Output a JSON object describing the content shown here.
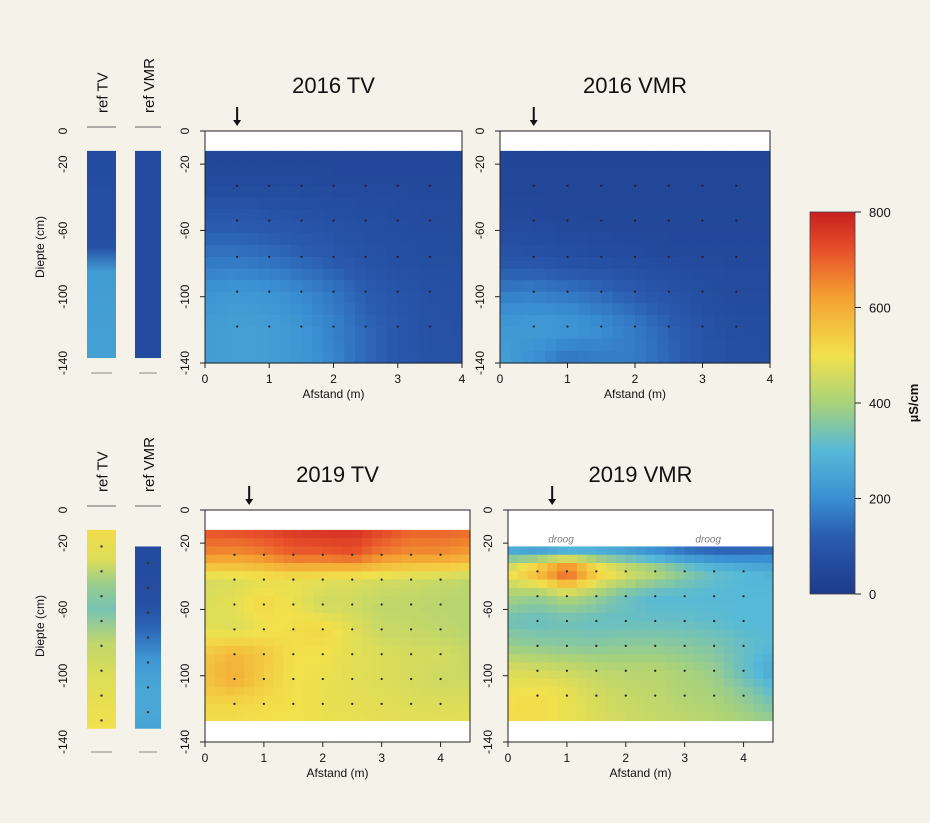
{
  "chart_data": {
    "type": "heatmap",
    "colorbar": {
      "label": "µS/cm",
      "min": 0,
      "max": 800,
      "ticks": [
        "800",
        "600",
        "400",
        "200",
        "0"
      ],
      "tick_values": [
        800,
        600,
        400,
        200,
        0
      ],
      "stops": [
        {
          "v": 0,
          "c": "#1d3a8a"
        },
        {
          "v": 120,
          "c": "#2a5bb0"
        },
        {
          "v": 200,
          "c": "#3a8fd2"
        },
        {
          "v": 300,
          "c": "#56b9d8"
        },
        {
          "v": 400,
          "c": "#a9d27a"
        },
        {
          "v": 500,
          "c": "#f2e14b"
        },
        {
          "v": 620,
          "c": "#f4a232"
        },
        {
          "v": 720,
          "c": "#e8502a"
        },
        {
          "v": 800,
          "c": "#c81f1f"
        }
      ]
    },
    "rows": [
      {
        "ylabel": "Diepte (cm)",
        "ref_columns": [
          {
            "label": "ref TV",
            "top_cm": -12,
            "bottom_cm": -137,
            "profile": [
              [
                -12,
                60
              ],
              [
                -70,
                80
              ],
              [
                -85,
                230
              ],
              [
                -137,
                240
              ]
            ]
          },
          {
            "label": "ref VMR",
            "top_cm": -12,
            "bottom_cm": -137,
            "profile": [
              [
                -12,
                60
              ],
              [
                -137,
                60
              ]
            ]
          }
        ],
        "ref_yticks": [
          "0",
          "-20",
          "-60",
          "-100",
          "-140"
        ],
        "ref_ytick_values": [
          0,
          -20,
          -60,
          -100,
          -140
        ],
        "panels": [
          {
            "title": "2016  TV",
            "xlabel": "Afstand (m)",
            "xlim": [
              0,
              4
            ],
            "ylim": [
              -140,
              0
            ],
            "xticks": [
              "0",
              "1",
              "2",
              "3",
              "4"
            ],
            "xtick_values": [
              0,
              1,
              2,
              3,
              4
            ],
            "yticks": [
              "0",
              "-20",
              "-60",
              "-100",
              "-140"
            ],
            "ytick_values": [
              0,
              -20,
              -60,
              -100,
              -140
            ],
            "arrow_x": 0.5,
            "data_top_cm": -12,
            "droog_labels": [],
            "grid_x": [
              0,
              0.5,
              1,
              1.5,
              2,
              2.5,
              3,
              3.5,
              4
            ],
            "grid_y": [
              -12,
              -33,
              -54,
              -76,
              -97,
              -118,
              -140
            ],
            "values": [
              [
                50,
                50,
                50,
                50,
                50,
                50,
                50,
                50,
                50
              ],
              [
                60,
                60,
                60,
                60,
                55,
                55,
                55,
                55,
                55
              ],
              [
                110,
                110,
                100,
                90,
                80,
                70,
                65,
                60,
                60
              ],
              [
                160,
                160,
                150,
                130,
                110,
                90,
                75,
                70,
                70
              ],
              [
                210,
                220,
                210,
                190,
                160,
                120,
                95,
                80,
                80
              ],
              [
                230,
                240,
                235,
                215,
                180,
                140,
                105,
                85,
                80
              ],
              [
                230,
                240,
                235,
                220,
                185,
                140,
                105,
                90,
                85
              ]
            ]
          },
          {
            "title": "2016  VMR",
            "xlabel": "Afstand (m)",
            "xlim": [
              0,
              4
            ],
            "ylim": [
              -140,
              0
            ],
            "xticks": [
              "0",
              "1",
              "2",
              "3",
              "4"
            ],
            "xtick_values": [
              0,
              1,
              2,
              3,
              4
            ],
            "yticks": [
              "0",
              "-20",
              "-60",
              "-100",
              "-140"
            ],
            "ytick_values": [
              0,
              -20,
              -60,
              -100,
              -140
            ],
            "arrow_x": 0.5,
            "data_top_cm": -12,
            "droog_labels": [],
            "grid_x": [
              0,
              0.5,
              1,
              1.5,
              2,
              2.5,
              3,
              3.5,
              4
            ],
            "grid_y": [
              -12,
              -33,
              -54,
              -76,
              -97,
              -118,
              -140
            ],
            "values": [
              [
                40,
                40,
                40,
                40,
                40,
                40,
                40,
                40,
                40
              ],
              [
                45,
                45,
                45,
                45,
                45,
                45,
                45,
                45,
                45
              ],
              [
                55,
                55,
                50,
                50,
                50,
                50,
                50,
                50,
                50
              ],
              [
                90,
                85,
                75,
                65,
                60,
                55,
                55,
                55,
                55
              ],
              [
                170,
                175,
                160,
                140,
                115,
                90,
                70,
                60,
                60
              ],
              [
                220,
                230,
                225,
                200,
                170,
                130,
                90,
                70,
                65
              ],
              [
                240,
                200,
                150,
                170,
                170,
                140,
                95,
                75,
                70
              ]
            ]
          }
        ]
      },
      {
        "ylabel": "Diepte (cm)",
        "ref_columns": [
          {
            "label": "ref TV",
            "top_cm": -12,
            "bottom_cm": -132,
            "profile": [
              [
                -12,
                510
              ],
              [
                -30,
                470
              ],
              [
                -45,
                380
              ],
              [
                -60,
                340
              ],
              [
                -80,
                430
              ],
              [
                -100,
                470
              ],
              [
                -132,
                500
              ]
            ]
          },
          {
            "label": "ref VMR",
            "top_cm": -22,
            "bottom_cm": -132,
            "profile": [
              [
                -22,
                60
              ],
              [
                -55,
                70
              ],
              [
                -70,
                130
              ],
              [
                -90,
                220
              ],
              [
                -110,
                260
              ],
              [
                -132,
                250
              ]
            ]
          }
        ],
        "ref_yticks": [
          "0",
          "-20",
          "-60",
          "-100",
          "-140"
        ],
        "ref_ytick_values": [
          0,
          -20,
          -60,
          -100,
          -140
        ],
        "panels": [
          {
            "title": "2019  TV",
            "xlabel": "Afstand (m)",
            "xlim": [
              0,
              4.5
            ],
            "ylim": [
              -140,
              0
            ],
            "xticks": [
              "0",
              "1",
              "2",
              "3",
              "4"
            ],
            "xtick_values": [
              0,
              1,
              2,
              3,
              4
            ],
            "yticks": [
              "0",
              "-20",
              "-60",
              "-100",
              "-140"
            ],
            "ytick_values": [
              0,
              -20,
              -60,
              -100,
              -140
            ],
            "arrow_x": 0.75,
            "data_top_cm": -12,
            "data_bottom_cm": -127,
            "droog_labels": [],
            "grid_x": [
              0,
              0.5,
              1,
              1.5,
              2,
              2.5,
              3,
              3.5,
              4,
              4.5
            ],
            "grid_y": [
              -12,
              -27,
              -42,
              -57,
              -72,
              -87,
              -102,
              -117,
              -127
            ],
            "values": [
              [
                720,
                730,
                740,
                760,
                770,
                770,
                740,
                700,
                700,
                690
              ],
              [
                650,
                640,
                660,
                700,
                700,
                720,
                660,
                640,
                640,
                620
              ],
              [
                460,
                470,
                480,
                490,
                480,
                470,
                460,
                450,
                440,
                430
              ],
              [
                470,
                480,
                520,
                490,
                450,
                450,
                430,
                430,
                420,
                420
              ],
              [
                480,
                470,
                490,
                510,
                520,
                480,
                440,
                440,
                430,
                420
              ],
              [
                550,
                580,
                550,
                500,
                500,
                480,
                470,
                460,
                460,
                440
              ],
              [
                560,
                600,
                540,
                500,
                490,
                480,
                470,
                460,
                450,
                450
              ],
              [
                520,
                520,
                510,
                500,
                490,
                480,
                480,
                470,
                470,
                470
              ],
              [
                510,
                510,
                500,
                500,
                490,
                490,
                480,
                480,
                480,
                480
              ]
            ]
          },
          {
            "title": "2019  VMR",
            "xlabel": "Afstand (m)",
            "xlim": [
              0,
              4.5
            ],
            "ylim": [
              -140,
              0
            ],
            "xticks": [
              "0",
              "1",
              "2",
              "3",
              "4"
            ],
            "xtick_values": [
              0,
              1,
              2,
              3,
              4
            ],
            "yticks": [
              "0",
              "-20",
              "-60",
              "-100",
              "-140"
            ],
            "ytick_values": [
              0,
              -20,
              -60,
              -100,
              -140
            ],
            "arrow_x": 0.75,
            "data_top_cm": -22,
            "data_bottom_cm": -127,
            "droog_labels": [
              {
                "text": "droog",
                "x": 0.9
              },
              {
                "text": "droog",
                "x": 3.4
              }
            ],
            "grid_x": [
              0,
              0.5,
              1,
              1.5,
              2,
              2.5,
              3,
              3.5,
              4,
              4.5
            ],
            "grid_y": [
              -22,
              -37,
              -52,
              -67,
              -82,
              -97,
              -112,
              -127
            ],
            "values": [
              [
                220,
                180,
                200,
                220,
                200,
                160,
                120,
                100,
                100,
                120
              ],
              [
                500,
                600,
                740,
                560,
                480,
                430,
                370,
                320,
                300,
                280
              ],
              [
                400,
                380,
                420,
                380,
                330,
                300,
                300,
                300,
                300,
                300
              ],
              [
                330,
                320,
                330,
                320,
                320,
                320,
                320,
                310,
                300,
                300
              ],
              [
                380,
                370,
                360,
                360,
                370,
                370,
                360,
                350,
                320,
                300
              ],
              [
                470,
                460,
                450,
                430,
                420,
                420,
                400,
                380,
                320,
                260
              ],
              [
                500,
                510,
                490,
                460,
                440,
                430,
                410,
                400,
                370,
                320
              ],
              [
                510,
                510,
                490,
                470,
                450,
                440,
                430,
                420,
                400,
                380
              ]
            ]
          }
        ]
      }
    ]
  }
}
